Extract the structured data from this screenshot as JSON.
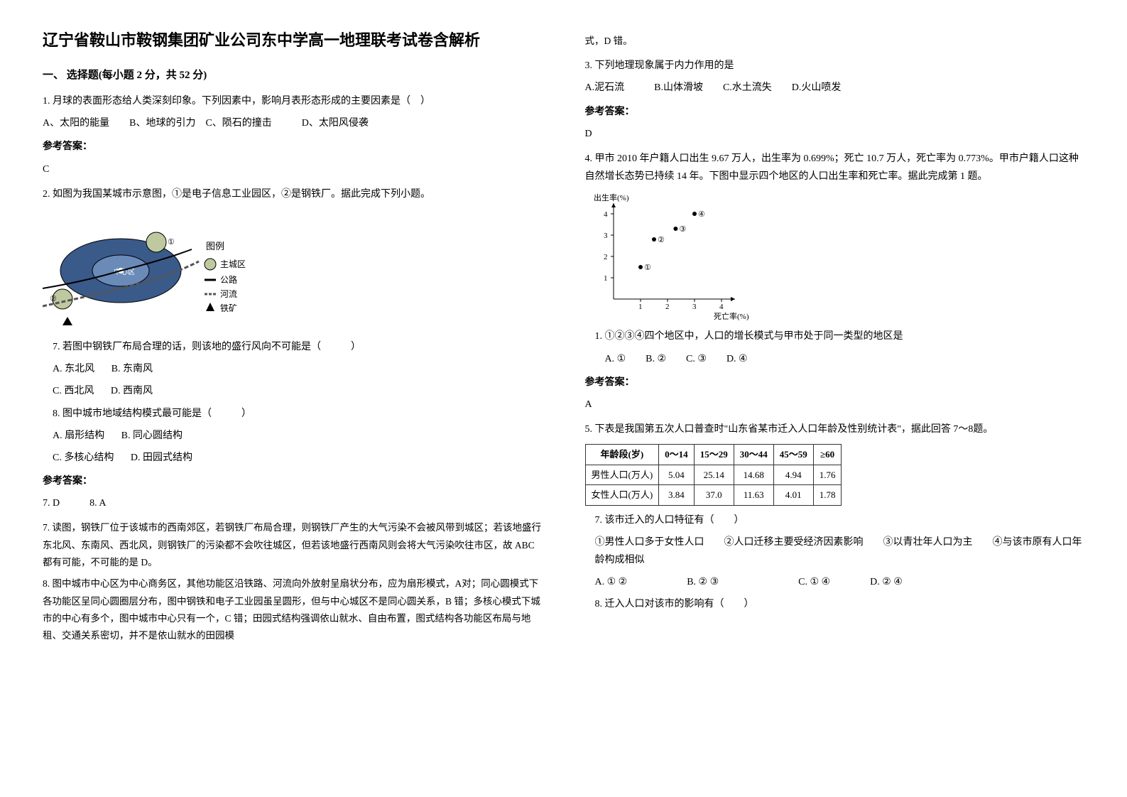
{
  "title": "辽宁省鞍山市鞍钢集团矿业公司东中学高一地理联考试卷含解析",
  "section1": "一、 选择题(每小题 2 分，共 52 分)",
  "q1": {
    "text": "1. 月球的表面形态给人类深刻印象。下列因素中，影响月表形态形成的主要因素是（　）",
    "opts": "A、太阳的能量　　B、地球的引力　C、陨石的撞击　　　D、太阳风侵袭",
    "ansLabel": "参考答案：",
    "ans": "C"
  },
  "q2": {
    "text": "2. 如图为我国某城市示意图，①是电子信息工业园区，②是钢铁厂。据此完成下列小题。",
    "legend": {
      "title": "图例",
      "items": [
        "主城区",
        "公路",
        "河流",
        "铁矿"
      ]
    },
    "sub7": "7.  若图中钢铁厂布局合理的话，则该地的盛行风向不可能是（　　　）",
    "sub7opts": {
      "a": "A.  东北风",
      "b": "B.  东南风",
      "c": "C.  西北风",
      "d": "D.  西南风"
    },
    "sub8": "8.  图中城市地域结构模式最可能是（　　　）",
    "sub8opts": {
      "a": "A.  扇形结构",
      "b": "B.  同心圆结构",
      "c": "C.  多核心结构",
      "d": "D.  田园式结构"
    },
    "ansLabel": "参考答案：",
    "ans": "7.  D　　　8.  A",
    "exp1": "7. 读图，钢铁厂位于该城市的西南郊区，若钢铁厂布局合理，则钢铁厂产生的大气污染不会被风带到城区；若该地盛行东北风、东南风、西北风，则钢铁厂的污染都不会吹往城区，但若该地盛行西南风则会将大气污染吹往市区，故 ABC 都有可能，不可能的是 D。",
    "exp2": "8. 图中城市中心区为中心商务区，其他功能区沿铁路、河流向外放射呈扇状分布，应为扇形模式，A对；同心圆模式下各功能区呈同心圆圈层分布，图中钢铁和电子工业园虽呈圆形，但与中心城区不是同心圆关系，B 错；多核心模式下城市的中心有多个，图中城市中心只有一个，C 错；田园式结构强调依山就水、自由布置，图式结构各功能区布局与地租、交通关系密切，并不是依山就水的田园模"
  },
  "q2tail": "式，D 错。",
  "q3": {
    "text": "3. 下列地理现象属于内力作用的是",
    "opts": "A.泥石流　　　B.山体滑坡　　C.水土流失　　D.火山喷发",
    "ansLabel": "参考答案：",
    "ans": "D"
  },
  "q4": {
    "text": "4. 甲市 2010 年户籍人口出生 9.67 万人，出生率为 0.699%；死亡 10.7 万人，死亡率为 0.773%。甲市户籍人口这种自然增长态势已持续 14 年。下图中显示四个地区的人口出生率和死亡率。据此完成第 1 题。",
    "chart": {
      "xlabel": "死亡率(%)",
      "ylabel": "出生率(%)",
      "xticks": [
        1,
        2,
        3,
        4
      ],
      "yticks": [
        1,
        2,
        3,
        4
      ],
      "points": [
        {
          "id": "①",
          "x": 1.0,
          "y": 1.5
        },
        {
          "id": "②",
          "x": 1.5,
          "y": 2.8
        },
        {
          "id": "③",
          "x": 2.3,
          "y": 3.3
        },
        {
          "id": "④",
          "x": 3.0,
          "y": 4.0
        }
      ],
      "axis_color": "#000",
      "point_color": "#000"
    },
    "sub1": "1.  ①②③④四个地区中，人口的增长模式与甲市处于同一类型的地区是",
    "sub1opts": "A.  ①　　B.  ②　　C.  ③　　D.  ④",
    "ansLabel": "参考答案：",
    "ans": "A"
  },
  "q5": {
    "intro": "5. 下表是我国第五次人口普查时\"山东省某市迁入人口年龄及性别统计表\"，据此回答 7～8题。",
    "table": {
      "headers": [
        "年龄段(岁)",
        "0～14",
        "15～29",
        "30～44",
        "45～59",
        "≥60"
      ],
      "rows": [
        [
          "男性人口(万人)",
          "5.04",
          "25.14",
          "14.68",
          "4.94",
          "1.76"
        ],
        [
          "女性人口(万人)",
          "3.84",
          "37.0",
          "11.63",
          "4.01",
          "1.78"
        ]
      ]
    },
    "sub7": "7.  该市迁入的人口特征有（　　）",
    "sub7body": "①男性人口多于女性人口　　②人口迁移主要受经济因素影响　　③以青壮年人口为主　　④与该市原有人口年龄构成相似",
    "sub7opts": "A.  ① ②　　　　　　B.  ② ③　　　　　　　　C.  ① ④　　　　D.  ② ④",
    "sub8": "8.  迁入人口对该市的影响有（　　）"
  }
}
